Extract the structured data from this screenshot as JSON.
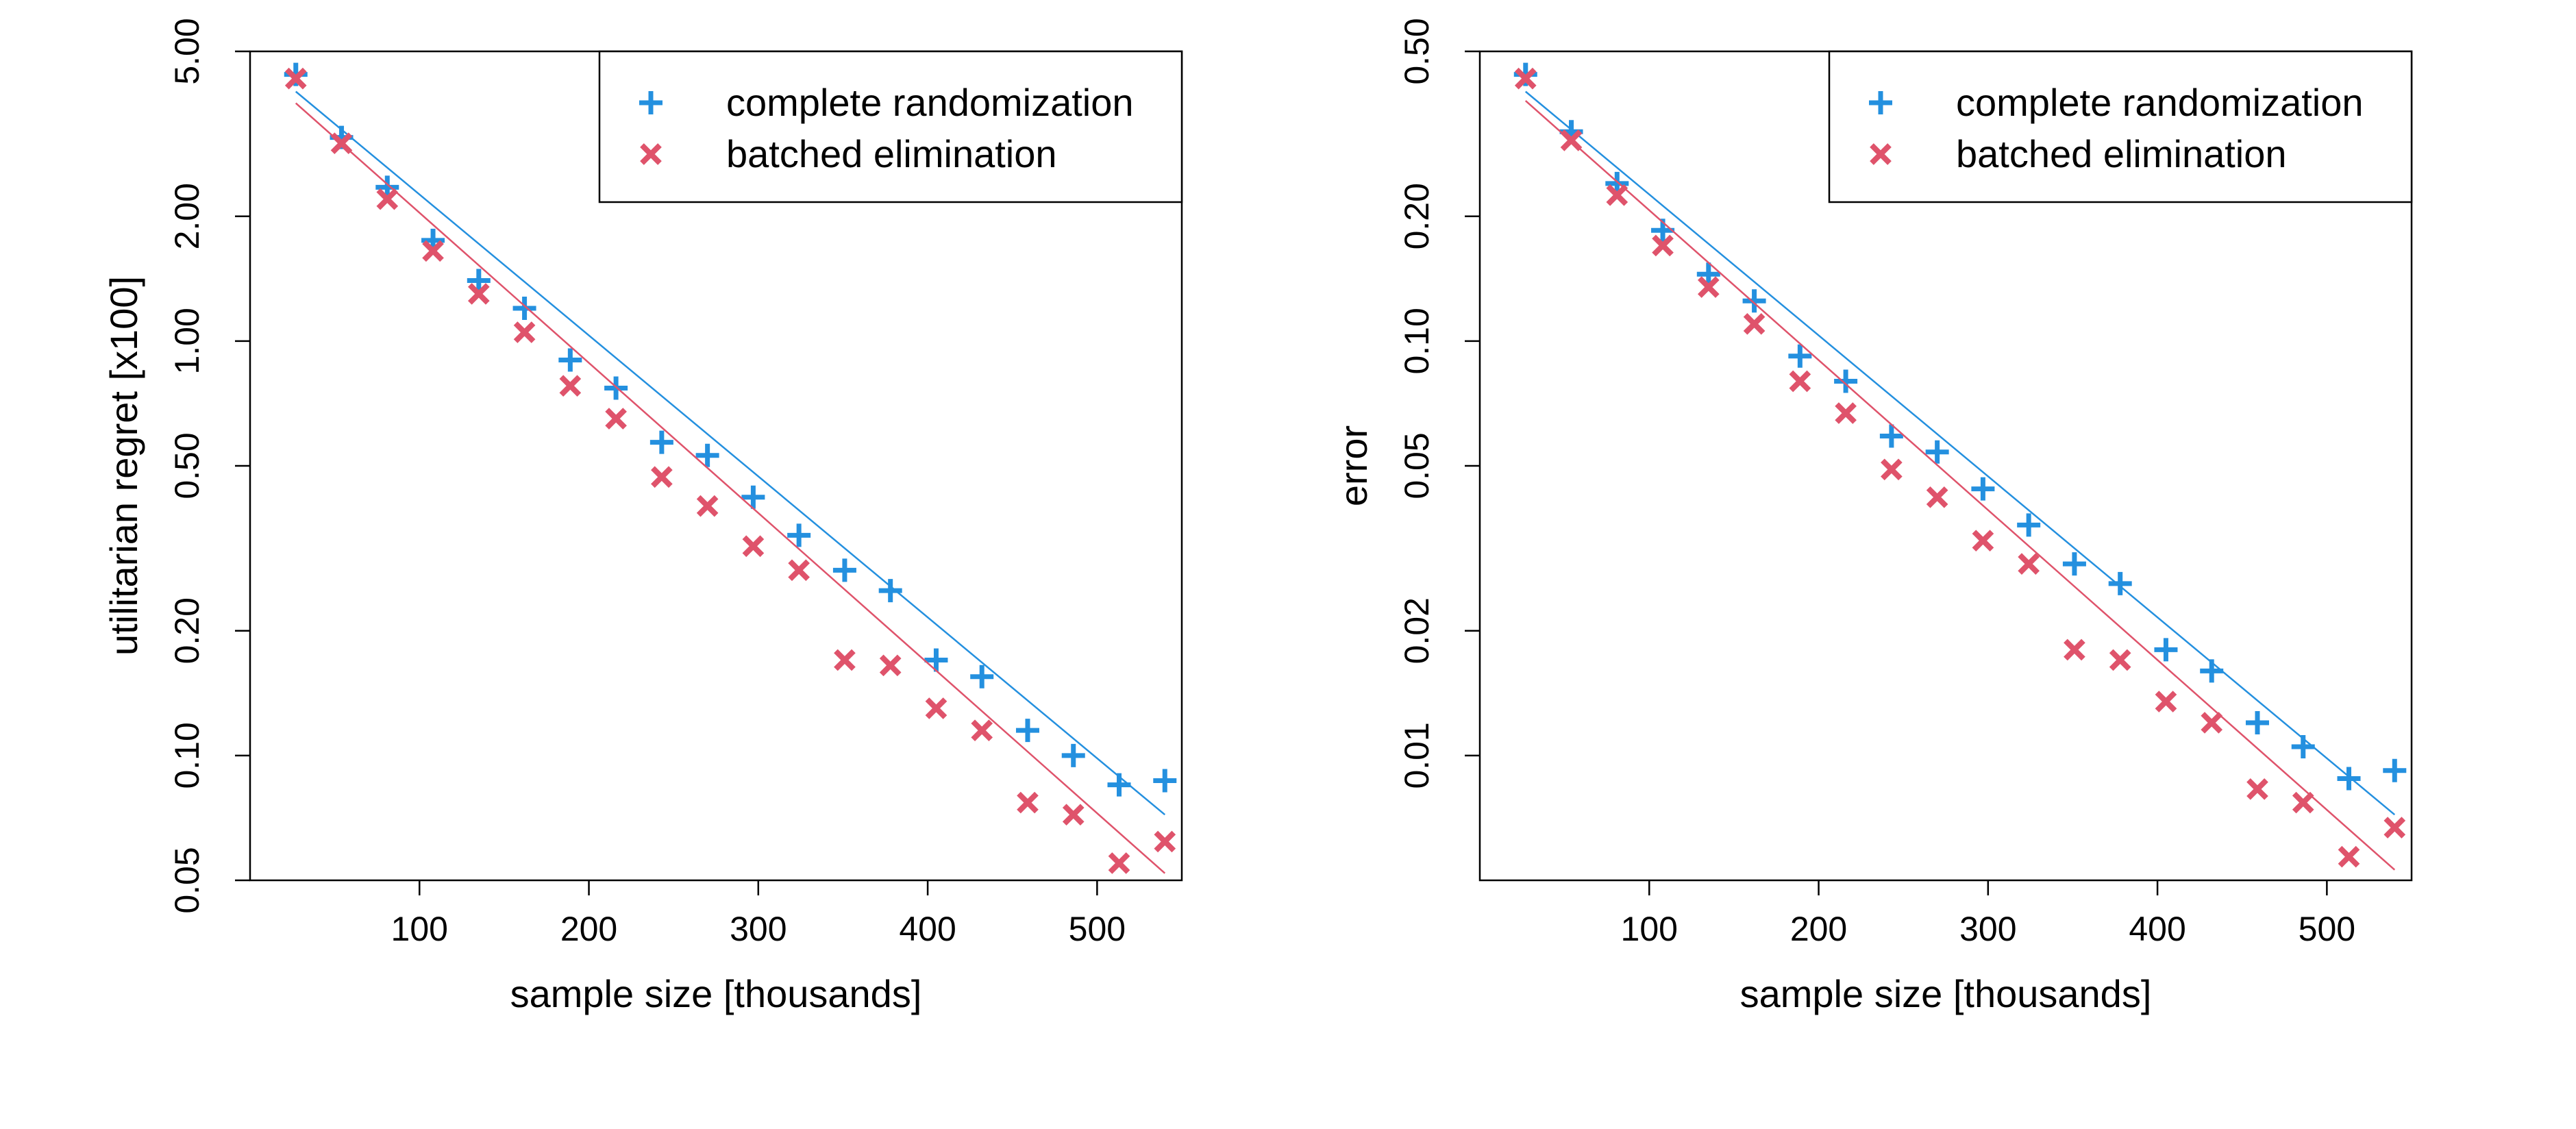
{
  "colors": {
    "complete_randomization": "#2490DF",
    "batched_elimination": "#DF536B",
    "axis": "#000000"
  },
  "chart_data": [
    {
      "type": "scatter",
      "title": "",
      "xlabel": "sample size [thousands]",
      "ylabel": "utilitarian regret [x100]",
      "yscale": "log",
      "xlim": [
        0,
        550
      ],
      "ylim": [
        0.05,
        5.0
      ],
      "x_ticks": [
        100,
        200,
        300,
        400,
        500
      ],
      "y_ticks": [
        0.05,
        0.1,
        0.2,
        0.5,
        1.0,
        2.0,
        5.0
      ],
      "y_tick_labels": [
        "0.05",
        "0.10",
        "0.20",
        "0.50",
        "1.00",
        "2.00",
        "5.00"
      ],
      "legend": {
        "position": "top-right",
        "entries": [
          "complete randomization",
          "batched elimination"
        ]
      },
      "series": [
        {
          "name": "complete randomization",
          "marker": "plus",
          "x": [
            27,
            54,
            81,
            108,
            135,
            162,
            189,
            216,
            243,
            270,
            297,
            324,
            351,
            378,
            405,
            432,
            459,
            486,
            513,
            540
          ],
          "y": [
            4.4,
            3.1,
            2.35,
            1.75,
            1.4,
            1.2,
            0.9,
            0.77,
            0.57,
            0.53,
            0.42,
            0.34,
            0.28,
            0.25,
            0.17,
            0.155,
            0.115,
            0.1,
            0.085,
            0.087
          ],
          "fit": {
            "x": [
              27,
              540
            ],
            "y": [
              4.0,
              0.072
            ]
          }
        },
        {
          "name": "batched elimination",
          "marker": "x",
          "x": [
            27,
            54,
            81,
            108,
            135,
            162,
            189,
            216,
            243,
            270,
            297,
            324,
            351,
            378,
            405,
            432,
            459,
            486,
            513,
            540
          ],
          "y": [
            4.3,
            3.0,
            2.2,
            1.65,
            1.3,
            1.05,
            0.78,
            0.65,
            0.47,
            0.4,
            0.32,
            0.28,
            0.17,
            0.165,
            0.13,
            0.115,
            0.077,
            0.072,
            0.055,
            0.062
          ],
          "fit": {
            "x": [
              27,
              540
            ],
            "y": [
              3.75,
              0.052
            ]
          }
        }
      ]
    },
    {
      "type": "scatter",
      "title": "",
      "xlabel": "sample size [thousands]",
      "ylabel": "error",
      "yscale": "log",
      "xlim": [
        0,
        550
      ],
      "ylim": [
        0.005,
        0.5
      ],
      "x_ticks": [
        100,
        200,
        300,
        400,
        500
      ],
      "y_ticks": [
        0.01,
        0.02,
        0.05,
        0.1,
        0.2,
        0.5
      ],
      "y_tick_labels": [
        "0.01",
        "0.02",
        "0.05",
        "0.10",
        "0.20",
        "0.50"
      ],
      "legend": {
        "position": "top-right",
        "entries": [
          "complete randomization",
          "batched elimination"
        ]
      },
      "series": [
        {
          "name": "complete randomization",
          "marker": "plus",
          "x": [
            27,
            54,
            81,
            108,
            135,
            162,
            189,
            216,
            243,
            270,
            297,
            324,
            351,
            378,
            405,
            432,
            459,
            486,
            513,
            540
          ],
          "y": [
            0.44,
            0.32,
            0.24,
            0.185,
            0.145,
            0.125,
            0.092,
            0.08,
            0.059,
            0.054,
            0.044,
            0.036,
            0.029,
            0.026,
            0.018,
            0.016,
            0.012,
            0.0105,
            0.0088,
            0.0092
          ],
          "fit": {
            "x": [
              27,
              540
            ],
            "y": [
              0.4,
              0.0072
            ]
          }
        },
        {
          "name": "batched elimination",
          "marker": "x",
          "x": [
            27,
            54,
            81,
            108,
            135,
            162,
            189,
            216,
            243,
            270,
            297,
            324,
            351,
            378,
            405,
            432,
            459,
            486,
            513,
            540
          ],
          "y": [
            0.43,
            0.305,
            0.225,
            0.17,
            0.135,
            0.11,
            0.08,
            0.067,
            0.049,
            0.042,
            0.033,
            0.029,
            0.018,
            0.017,
            0.0135,
            0.012,
            0.0083,
            0.0077,
            0.0057,
            0.0067
          ],
          "fit": {
            "x": [
              27,
              540
            ],
            "y": [
              0.38,
              0.0053
            ]
          }
        }
      ]
    }
  ]
}
